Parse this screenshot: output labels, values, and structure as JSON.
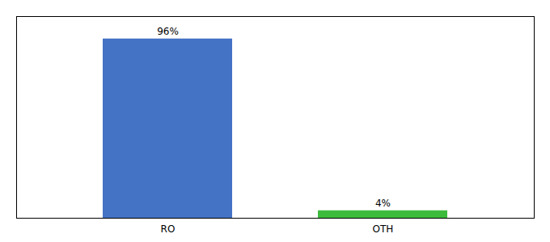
{
  "chart_data": {
    "type": "bar",
    "categories": [
      "RO",
      "OTH"
    ],
    "values": [
      96,
      4
    ],
    "value_labels": [
      "96%",
      "4%"
    ],
    "colors": [
      "#4472c4",
      "#3dbb3d"
    ],
    "ylim": [
      0,
      108
    ],
    "data_labels": true,
    "tick_labels": "x",
    "grid": false
  }
}
